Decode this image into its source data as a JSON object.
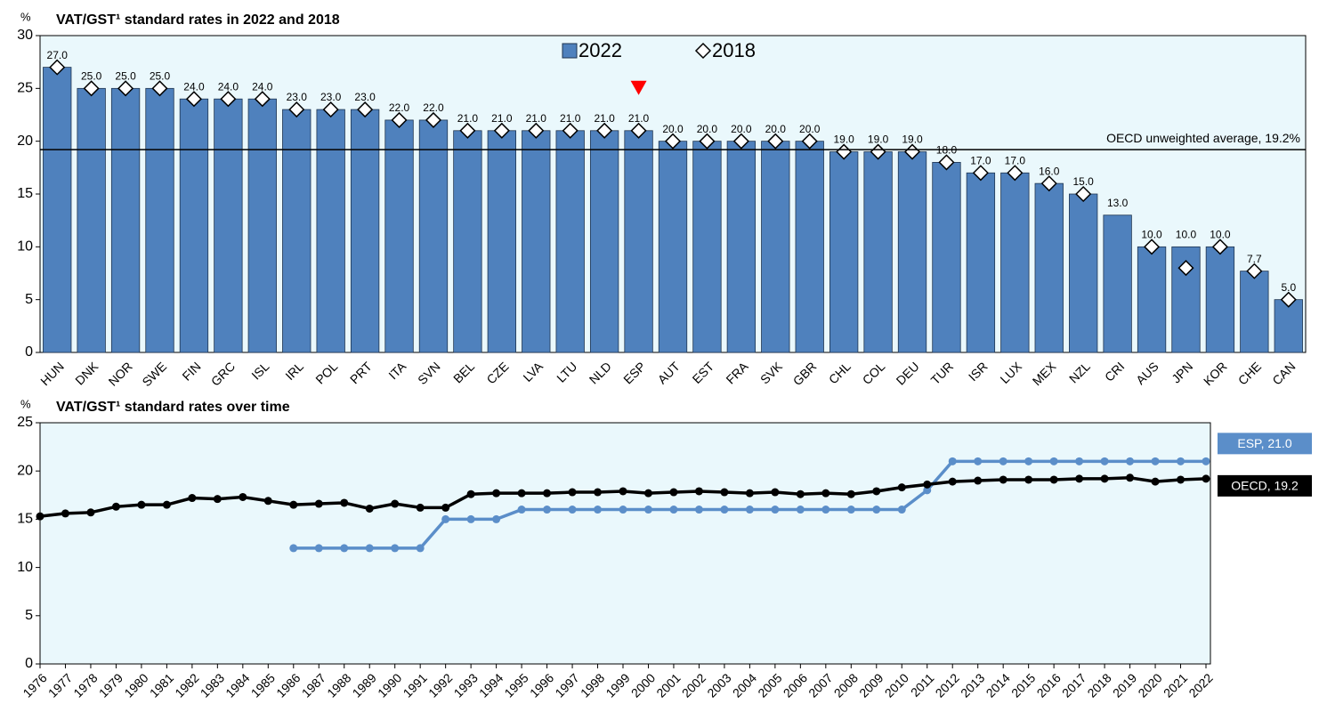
{
  "chart_data": [
    {
      "type": "bar",
      "title": "VAT/GST¹ standard rates in 2022 and 2018",
      "y_unit": "%",
      "categories": [
        "HUN",
        "DNK",
        "NOR",
        "SWE",
        "FIN",
        "GRC",
        "ISL",
        "IRL",
        "POL",
        "PRT",
        "ITA",
        "SVN",
        "BEL",
        "CZE",
        "LVA",
        "LTU",
        "NLD",
        "ESP",
        "AUT",
        "EST",
        "FRA",
        "SVK",
        "GBR",
        "CHL",
        "COL",
        "DEU",
        "TUR",
        "ISR",
        "LUX",
        "MEX",
        "NZL",
        "CRI",
        "AUS",
        "JPN",
        "KOR",
        "CHE",
        "CAN"
      ],
      "series": [
        {
          "name": "2022",
          "marker": "bar",
          "color": "#4f81bd",
          "values": [
            27,
            25,
            25,
            25,
            24,
            24,
            24,
            23,
            23,
            23,
            22,
            22,
            21,
            21,
            21,
            21,
            21,
            21,
            20,
            20,
            20,
            20,
            20,
            19,
            19,
            19,
            18,
            17,
            17,
            16,
            15,
            13,
            10,
            10,
            10,
            7.7,
            5
          ],
          "value_labels": [
            "27.0",
            "25.0",
            "25.0",
            "25.0",
            "24.0",
            "24.0",
            "24.0",
            "23.0",
            "23.0",
            "23.0",
            "22.0",
            "22.0",
            "21.0",
            "21.0",
            "21.0",
            "21.0",
            "21.0",
            "21.0",
            "20.0",
            "20.0",
            "20.0",
            "20.0",
            "20.0",
            "19.0",
            "19.0",
            "19.0",
            "18.0",
            "17.0",
            "17.0",
            "16.0",
            "15.0",
            "13.0",
            "10.0",
            "10.0",
            "10.0",
            "7.7",
            "5.0"
          ]
        },
        {
          "name": "2018",
          "marker": "diamond",
          "color": "#ffffff",
          "values": [
            27,
            25,
            25,
            25,
            24,
            24,
            24,
            23,
            23,
            23,
            22,
            22,
            21,
            21,
            21,
            21,
            21,
            21,
            20,
            20,
            20,
            20,
            20,
            19,
            19,
            19,
            18,
            17,
            17,
            16,
            15,
            null,
            10,
            8,
            10,
            7.7,
            5
          ]
        }
      ],
      "average_line": {
        "value": 19.2,
        "label": "OECD unweighted average, 19.2%"
      },
      "highlight": "ESP",
      "highlight_color": "#ff0000",
      "legend": "top",
      "ylim": [
        0,
        30
      ],
      "yticks": [
        0,
        5,
        10,
        15,
        20,
        25,
        30
      ],
      "grid": false
    },
    {
      "type": "line",
      "title": "VAT/GST¹ standard rates over time",
      "y_unit": "%",
      "x": [
        1976,
        1977,
        1978,
        1979,
        1980,
        1981,
        1982,
        1983,
        1984,
        1985,
        1986,
        1987,
        1988,
        1989,
        1990,
        1991,
        1992,
        1993,
        1994,
        1995,
        1996,
        1997,
        1998,
        1999,
        2000,
        2001,
        2002,
        2003,
        2004,
        2005,
        2006,
        2007,
        2008,
        2009,
        2010,
        2011,
        2012,
        2013,
        2014,
        2015,
        2016,
        2017,
        2018,
        2019,
        2020,
        2021,
        2022
      ],
      "series": [
        {
          "name": "ESP, 21.0",
          "color": "#5b8ec9",
          "values": [
            null,
            null,
            null,
            null,
            null,
            null,
            null,
            null,
            null,
            null,
            12,
            12,
            12,
            12,
            12,
            12,
            15,
            15,
            15,
            16,
            16,
            16,
            16,
            16,
            16,
            16,
            16,
            16,
            16,
            16,
            16,
            16,
            16,
            16,
            16,
            18,
            21,
            21,
            21,
            21,
            21,
            21,
            21,
            21,
            21,
            21,
            21
          ]
        },
        {
          "name": "OECD, 19.2",
          "color": "#000000",
          "values": [
            15.3,
            15.6,
            15.7,
            16.3,
            16.5,
            16.5,
            17.2,
            17.1,
            17.3,
            16.9,
            16.5,
            16.6,
            16.7,
            16.1,
            16.6,
            16.2,
            16.2,
            17.6,
            17.7,
            17.7,
            17.7,
            17.8,
            17.8,
            17.9,
            17.7,
            17.8,
            17.9,
            17.8,
            17.7,
            17.8,
            17.6,
            17.7,
            17.6,
            17.9,
            18.3,
            18.6,
            18.9,
            19.0,
            19.1,
            19.1,
            19.1,
            19.2,
            19.2,
            19.3,
            18.9,
            19.1,
            19.2
          ]
        }
      ],
      "xlim": [
        1976,
        2022
      ],
      "ylim": [
        0,
        25
      ],
      "yticks": [
        0,
        5,
        10,
        15,
        20,
        25
      ],
      "grid": false
    }
  ]
}
